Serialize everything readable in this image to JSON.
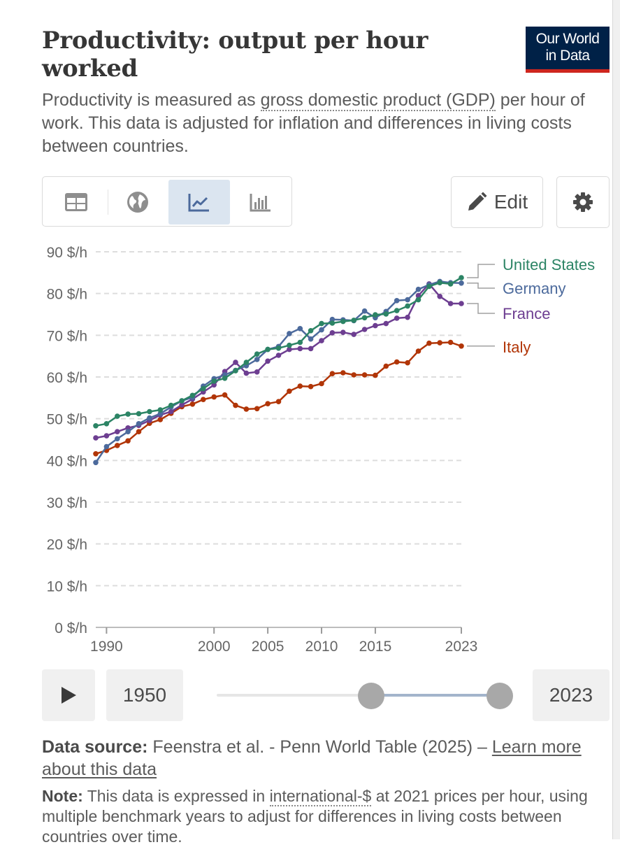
{
  "header": {
    "title": "Productivity: output per hour worked",
    "subtitle_prefix": "Productivity is measured as ",
    "subtitle_link": "gross domestic product (GDP)",
    "subtitle_suffix": " per hour of work. This data is adjusted for inflation and differences in living costs between countries.",
    "logo_line1": "Our World",
    "logo_line2": "in Data"
  },
  "toolbar": {
    "tabs": [
      {
        "icon": "table-icon",
        "active": false
      },
      {
        "icon": "globe-icon",
        "active": false
      },
      {
        "icon": "line-chart-icon",
        "active": true
      },
      {
        "icon": "bar-chart-icon",
        "active": false
      }
    ],
    "edit_label": "Edit",
    "edit_icon": "pencil-icon",
    "settings_icon": "gear-icon"
  },
  "timeline": {
    "start_label": "1950",
    "end_label": "2023",
    "play_icon": "play-icon"
  },
  "footer": {
    "source_label": "Data source:",
    "source_text": " Feenstra et al. - Penn World Table (2025) – ",
    "source_link": "Learn more about this data",
    "note_label": "Note:",
    "note_prefix": " This data is expressed in ",
    "note_link": "international-$",
    "note_suffix": " at 2021 prices per hour, using multiple benchmark years to adjust for differences in living costs between countries over time."
  },
  "colors": {
    "United States": "#2c8465",
    "Germany": "#4c6a9c",
    "France": "#6d3e91",
    "Italy": "#b13507",
    "grid": "#dddddd",
    "axis_text": "#666666"
  },
  "chart_data": {
    "type": "line",
    "ylim": [
      0,
      90
    ],
    "yticks": [
      0,
      10,
      20,
      30,
      40,
      50,
      60,
      70,
      80,
      90
    ],
    "ytick_labels": [
      "0 $/h",
      "10 $/h",
      "20 $/h",
      "30 $/h",
      "40 $/h",
      "50 $/h",
      "60 $/h",
      "70 $/h",
      "80 $/h",
      "90 $/h"
    ],
    "xlim": [
      1989,
      2023
    ],
    "xticks": [
      1990,
      2000,
      2005,
      2010,
      2015,
      2023
    ],
    "xtick_labels": [
      "1990",
      "2000",
      "2005",
      "2010",
      "2015",
      "2023"
    ],
    "grid": "horizontal dashed",
    "legend": "right, labels at line ends",
    "x": [
      1989,
      1990,
      1991,
      1992,
      1993,
      1994,
      1995,
      1996,
      1997,
      1998,
      1999,
      2000,
      2001,
      2002,
      2003,
      2004,
      2005,
      2006,
      2007,
      2008,
      2009,
      2010,
      2011,
      2012,
      2013,
      2014,
      2015,
      2016,
      2017,
      2018,
      2019,
      2020,
      2021,
      2022,
      2023
    ],
    "series": [
      {
        "name": "United States",
        "values": [
          48.3,
          48.8,
          50.6,
          51.1,
          51.2,
          51.7,
          52.1,
          53.2,
          54.3,
          55.6,
          57.2,
          59.0,
          59.7,
          61.5,
          63.5,
          65.5,
          66.6,
          66.9,
          67.6,
          68.3,
          71.1,
          72.8,
          72.9,
          73.3,
          73.6,
          74.2,
          74.9,
          75.1,
          75.9,
          77.0,
          78.5,
          81.7,
          82.6,
          82.3,
          83.8
        ]
      },
      {
        "name": "Germany",
        "values": [
          39.5,
          43.3,
          45.2,
          46.9,
          48.8,
          50.2,
          51.2,
          52.8,
          54.3,
          55.1,
          57.8,
          59.6,
          60.5,
          61.6,
          62.7,
          64.2,
          66.6,
          67.3,
          70.4,
          71.6,
          69.1,
          71.3,
          73.8,
          73.7,
          73.5,
          75.8,
          74.2,
          75.7,
          78.3,
          78.5,
          81.0,
          82.1,
          82.9,
          82.6,
          82.5
        ]
      },
      {
        "name": "France",
        "values": [
          45.4,
          45.9,
          46.9,
          47.8,
          48.4,
          49.6,
          50.9,
          51.7,
          53.3,
          54.7,
          56.4,
          58.1,
          61.3,
          63.5,
          60.9,
          61.2,
          63.8,
          65.2,
          66.6,
          66.8,
          66.8,
          68.7,
          70.6,
          70.7,
          70.2,
          71.4,
          72.3,
          72.8,
          74.1,
          74.3,
          79.5,
          82.3,
          79.3,
          77.6,
          77.6
        ]
      },
      {
        "name": "Italy",
        "values": [
          41.6,
          42.4,
          43.6,
          44.7,
          46.9,
          48.9,
          49.8,
          51.3,
          52.9,
          53.5,
          54.6,
          55.2,
          55.7,
          53.2,
          52.3,
          52.4,
          53.6,
          54.1,
          56.6,
          57.8,
          57.7,
          58.4,
          60.8,
          61.0,
          60.5,
          60.5,
          60.4,
          62.6,
          63.6,
          63.4,
          66.2,
          68.1,
          68.2,
          68.3,
          67.4
        ]
      }
    ]
  }
}
